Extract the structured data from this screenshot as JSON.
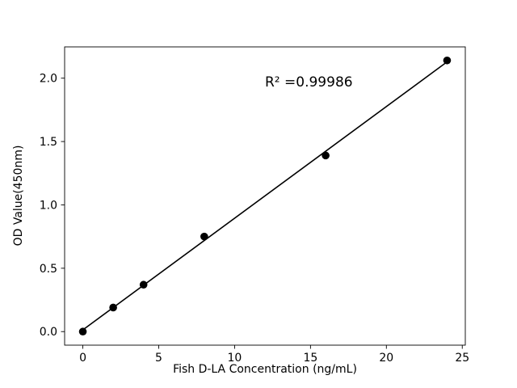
{
  "chart_data": {
    "type": "scatter",
    "title": "",
    "xlabel": "Fish D-LA Concentration (ng/mL)",
    "ylabel": "OD Value(450nm)",
    "x": [
      0,
      2,
      4,
      8,
      16,
      24
    ],
    "y": [
      0.0,
      0.19,
      0.37,
      0.75,
      1.39,
      2.14
    ],
    "fit_line": true,
    "annotation": {
      "text": "R² =0.99986",
      "x": 12,
      "y": 2.0
    },
    "xlim": [
      -1.2,
      25.2
    ],
    "ylim": [
      -0.107,
      2.247
    ],
    "xticks": [
      0,
      5,
      10,
      15,
      20,
      25
    ],
    "xtick_labels": [
      "0",
      "5",
      "10",
      "15",
      "20",
      "25"
    ],
    "yticks": [
      0.0,
      0.5,
      1.0,
      1.5,
      2.0
    ],
    "ytick_labels": [
      "0.0",
      "0.5",
      "1.0",
      "1.5",
      "2.0"
    ],
    "grid": false,
    "legend": null,
    "marker_color": "#000000",
    "line_color": "#000000",
    "background_color": "#ffffff"
  }
}
